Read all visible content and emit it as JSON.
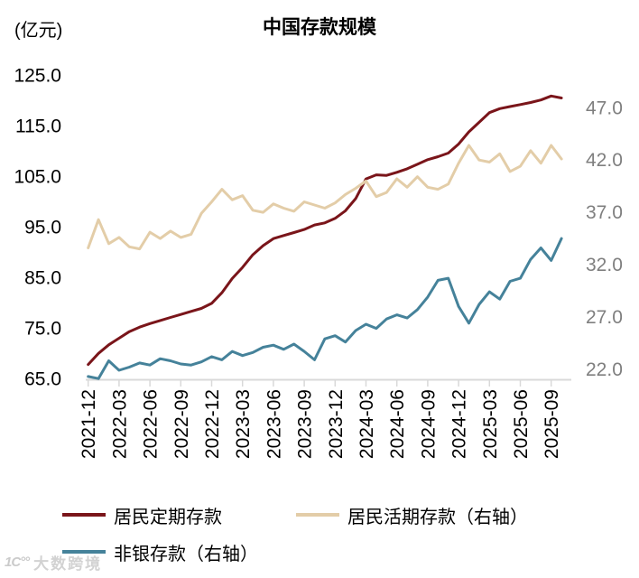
{
  "chart": {
    "title": "中国存款规模",
    "unit_label": "(亿元)",
    "watermark": {
      "logo_glyph": "1C°°",
      "text": "大数跨境"
    }
  },
  "chart_data": {
    "type": "line",
    "title": "中国存款规模",
    "unit": "亿元",
    "grid": false,
    "legend_position": "bottom-left",
    "x": [
      "2021-12",
      "2022-01",
      "2022-02",
      "2022-03",
      "2022-04",
      "2022-05",
      "2022-06",
      "2022-07",
      "2022-08",
      "2022-09",
      "2022-10",
      "2022-11",
      "2022-12",
      "2023-01",
      "2023-02",
      "2023-03",
      "2023-04",
      "2023-05",
      "2023-06",
      "2023-07",
      "2023-08",
      "2023-09",
      "2023-10",
      "2023-11",
      "2023-12",
      "2024-01",
      "2024-02",
      "2024-03",
      "2024-04",
      "2024-05",
      "2024-06",
      "2024-07",
      "2024-08",
      "2024-09",
      "2024-10",
      "2024-11",
      "2024-12",
      "2025-01",
      "2025-02",
      "2025-03",
      "2025-04",
      "2025-05",
      "2025-06",
      "2025-07",
      "2025-08",
      "2025-09",
      "2025-10"
    ],
    "x_tick_labels": [
      "2021-12",
      "2022-03",
      "2022-06",
      "2022-09",
      "2022-12",
      "2023-03",
      "2023-06",
      "2023-09",
      "2023-12",
      "2024-03",
      "2024-06",
      "2024-09",
      "2024-12",
      "2025-03",
      "2025-06",
      "2025-09"
    ],
    "left_axis": {
      "ylim": [
        65,
        125
      ],
      "ticks": [
        125,
        115,
        105,
        95,
        85,
        75,
        65
      ]
    },
    "right_axis": {
      "ylim": [
        22,
        47
      ],
      "ticks": [
        47,
        42,
        37,
        32,
        27,
        22
      ]
    },
    "colors": {
      "axis_line": "#D9D9D9",
      "x_tick_text": "#000000",
      "left_tick_text": "#000000",
      "right_tick_text": "#7F7F7F"
    },
    "series": [
      {
        "name": "居民定期存款",
        "axis": "left",
        "color": "#7A151A",
        "values": [
          67.8,
          70.0,
          71.7,
          73.0,
          74.3,
          75.2,
          75.9,
          76.5,
          77.1,
          77.7,
          78.3,
          78.9,
          79.9,
          82.0,
          84.8,
          87.0,
          89.5,
          91.3,
          92.7,
          93.3,
          93.9,
          94.5,
          95.4,
          95.8,
          96.7,
          98.2,
          100.6,
          104.5,
          105.3,
          105.2,
          105.8,
          106.5,
          107.4,
          108.3,
          108.9,
          109.6,
          111.4,
          113.8,
          115.7,
          117.6,
          118.4,
          118.8,
          119.2,
          119.6,
          120.1,
          120.9,
          120.5
        ]
      },
      {
        "name": "居民活期存款（右轴）",
        "axis": "right",
        "color": "#E3CDA8",
        "values": [
          33.6,
          36.3,
          34.0,
          34.6,
          33.7,
          33.5,
          35.1,
          34.5,
          35.2,
          34.6,
          34.9,
          36.9,
          38.0,
          39.2,
          38.2,
          38.6,
          37.2,
          37.0,
          37.8,
          37.4,
          37.1,
          38.0,
          37.7,
          37.4,
          37.9,
          38.7,
          39.3,
          40.0,
          38.5,
          38.9,
          40.2,
          39.4,
          40.4,
          39.4,
          39.2,
          39.7,
          41.7,
          43.4,
          42.0,
          41.8,
          42.6,
          40.9,
          41.4,
          42.9,
          41.7,
          43.4,
          42.1
        ]
      },
      {
        "name": "非银存款（右轴）",
        "axis": "right",
        "color": "#45829A",
        "values": [
          21.3,
          21.1,
          22.8,
          21.9,
          22.2,
          22.6,
          22.4,
          23.0,
          22.8,
          22.5,
          22.4,
          22.7,
          23.2,
          22.9,
          23.7,
          23.3,
          23.6,
          24.1,
          24.3,
          23.9,
          24.4,
          23.7,
          22.9,
          24.9,
          25.2,
          24.6,
          25.7,
          26.3,
          25.9,
          26.8,
          27.2,
          26.9,
          27.7,
          28.9,
          30.5,
          30.7,
          28.0,
          26.4,
          28.2,
          29.4,
          28.7,
          30.4,
          30.7,
          32.5,
          33.6,
          32.4,
          34.5
        ]
      }
    ]
  }
}
